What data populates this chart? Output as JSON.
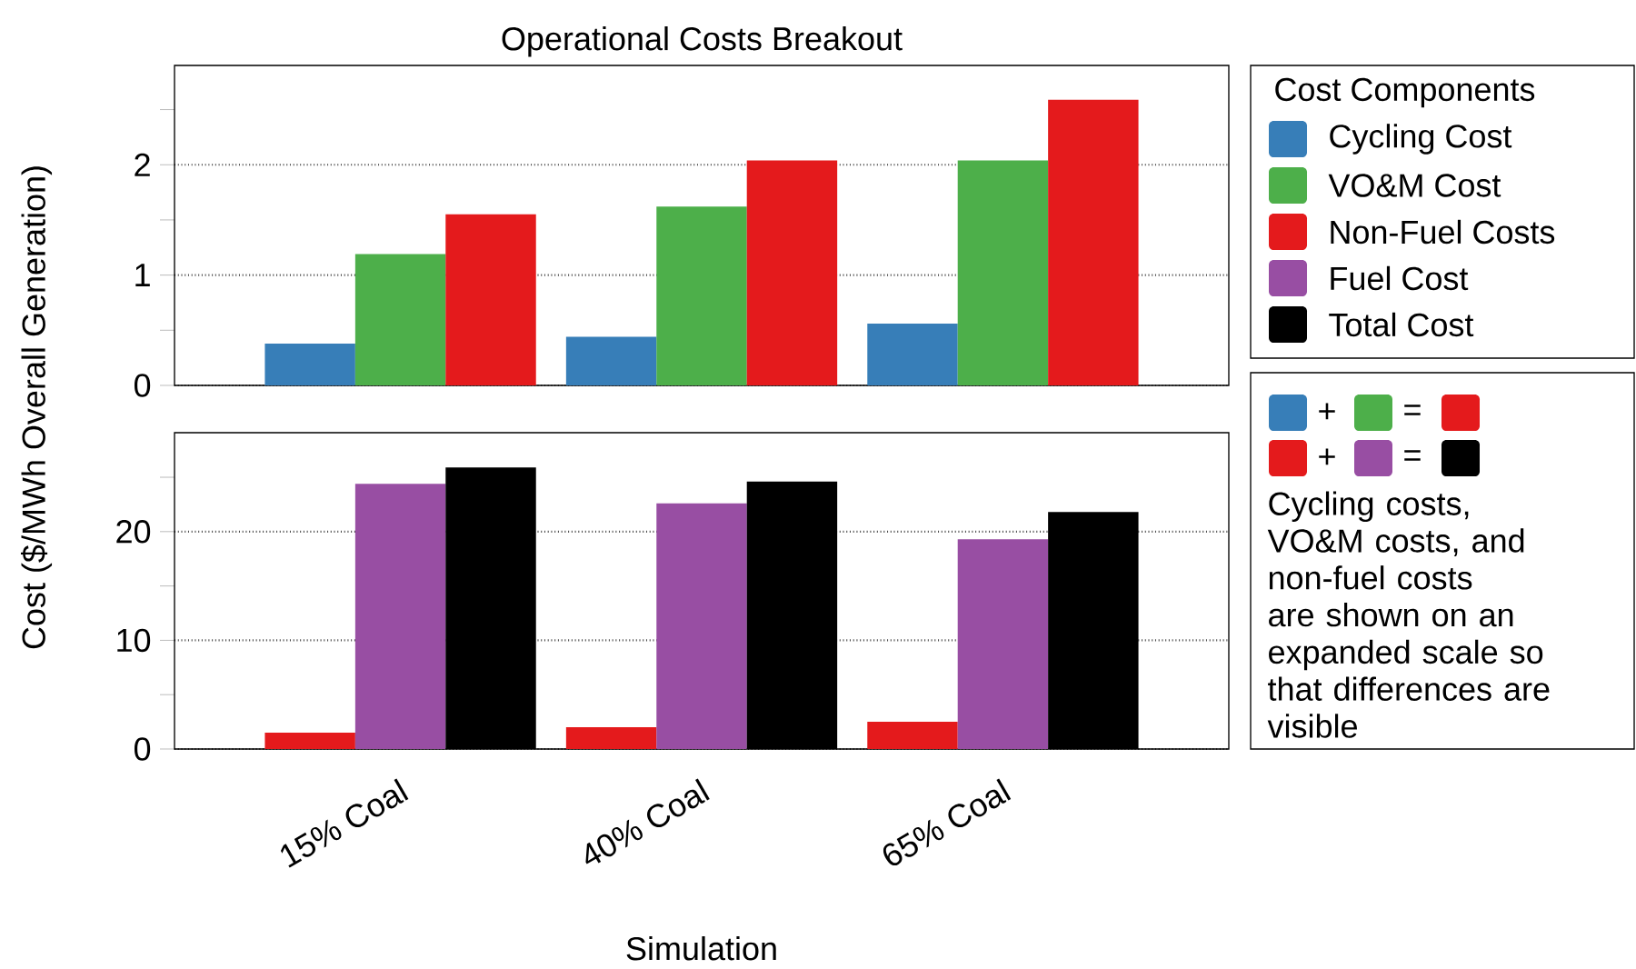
{
  "chart_data": [
    {
      "type": "bar",
      "title": "Operational Costs Breakout",
      "ylabel": "Cost ($/MWh Overall Generation)",
      "legend_title": "Cost Components",
      "categories": [
        null,
        null,
        null
      ],
      "series": [
        {
          "name": "Cycling Cost",
          "color": "#377eb8",
          "values": [
            0.38,
            0.44,
            0.56
          ]
        },
        {
          "name": "VO&M Cost",
          "color": "#4daf4a",
          "values": [
            1.19,
            1.62,
            2.04
          ]
        },
        {
          "name": "Non-Fuel Costs",
          "color": "#e41a1c",
          "values": [
            1.55,
            2.04,
            2.59
          ]
        }
      ],
      "ylim": [
        0,
        2.9
      ],
      "yticks": [
        0,
        {
          "value": 0.5,
          "label": null
        },
        1,
        {
          "value": 1.5,
          "label": null
        },
        2,
        {
          "value": 2.5,
          "label": null
        }
      ],
      "grid": "y",
      "legend": "right",
      "tick_labels": "y"
    },
    {
      "type": "bar",
      "xlabel": "Simulation",
      "categories": [
        "15% Coal",
        "40% Coal",
        "65% Coal"
      ],
      "series": [
        {
          "color": "#e41a1c",
          "values": [
            1.5,
            2.0,
            2.5
          ]
        },
        {
          "name": "Fuel Cost",
          "color": "#984ea3",
          "values": [
            24.4,
            22.6,
            19.3
          ]
        },
        {
          "name": "Total Cost",
          "color": "#000000",
          "values": [
            25.9,
            24.6,
            21.8
          ]
        }
      ],
      "ylim": [
        0,
        29.1
      ],
      "yticks": [
        0,
        {
          "value": 5,
          "label": null
        },
        10,
        {
          "value": 15,
          "label": null
        },
        20,
        {
          "value": 25,
          "label": null
        }
      ],
      "grid": "y",
      "legend": "right",
      "annotations": [
        "+",
        "=",
        "+",
        "=",
        "Cycling costs, VO&M costs, and non-fuel costs are shown on an expanded scale so that differences are visible"
      ]
    }
  ]
}
